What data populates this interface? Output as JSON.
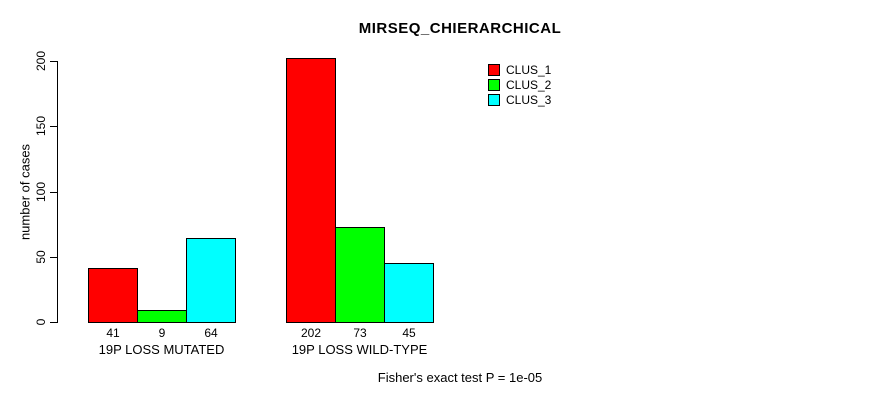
{
  "chart_data": {
    "type": "bar",
    "title": "MIRSEQ_CHIERARCHICAL",
    "ylabel": "number of cases",
    "xlabel": "",
    "ylim": [
      0,
      200
    ],
    "yticks": [
      0,
      50,
      100,
      150,
      200
    ],
    "categories": [
      "19P LOSS MUTATED",
      "19P LOSS WILD-TYPE"
    ],
    "series": [
      {
        "name": "CLUS_1",
        "color": "#FF0000",
        "values": [
          41,
          202
        ]
      },
      {
        "name": "CLUS_2",
        "color": "#00FF00",
        "values": [
          9,
          73
        ]
      },
      {
        "name": "CLUS_3",
        "color": "#00FFFF",
        "values": [
          64,
          45
        ]
      }
    ],
    "bar_value_labels": [
      [
        "41",
        "9",
        "64"
      ],
      [
        "202",
        "73",
        "45"
      ]
    ],
    "legend_position": "top-right",
    "grid": false,
    "annotation": "Fisher's exact test P = 1e-05",
    "axis_color": "#000000",
    "background_color": "#FFFFFF"
  }
}
